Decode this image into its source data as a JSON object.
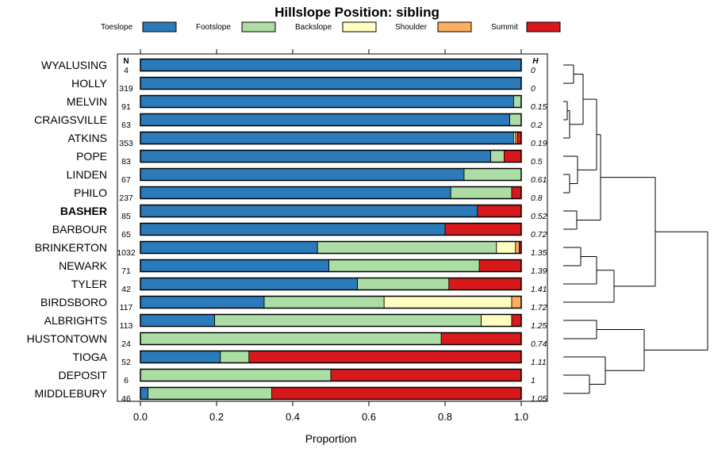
{
  "chart_data": {
    "type": "bar",
    "orientation": "horizontal",
    "stacked": true,
    "title": "Hillslope Position: sibling",
    "xlabel": "Proportion",
    "xlim": [
      0,
      1
    ],
    "xticks": [
      "0.0",
      "0.2",
      "0.4",
      "0.6",
      "0.8",
      "1.0"
    ],
    "n_header": "N",
    "h_header": "H",
    "legend": [
      {
        "name": "Toeslope",
        "color": "#2b7bba"
      },
      {
        "name": "Footslope",
        "color": "#abdda4"
      },
      {
        "name": "Backslope",
        "color": "#ffffbf"
      },
      {
        "name": "Shoulder",
        "color": "#fdae61"
      },
      {
        "name": "Summit",
        "color": "#d7191c"
      }
    ],
    "categories": [
      "WYALUSING",
      "HOLLY",
      "MELVIN",
      "CRAIGSVILLE",
      "ATKINS",
      "POPE",
      "LINDEN",
      "PHILO",
      "BASHER",
      "BARBOUR",
      "BRINKERTON",
      "NEWARK",
      "TYLER",
      "BIRDSBORO",
      "ALBRIGHTS",
      "HUSTONTOWN",
      "TIOGA",
      "DEPOSIT",
      "MIDDLEBURY"
    ],
    "highlight": "BASHER",
    "n": [
      "4",
      "319",
      "91",
      "63",
      "353",
      "83",
      "67",
      "237",
      "85",
      "65",
      "1032",
      "71",
      "42",
      "117",
      "113",
      "24",
      "52",
      "6",
      "46"
    ],
    "h": [
      "0",
      "0",
      "0.15",
      "0.2",
      "0.19",
      "0.5",
      "0.61",
      "0.8",
      "0.52",
      "0.72",
      "1.35",
      "1.39",
      "1.41",
      "1.72",
      "1.25",
      "0.74",
      "1.11",
      "1",
      "1.05"
    ],
    "series": [
      {
        "name": "Toeslope",
        "values": [
          1.0,
          1.0,
          0.98,
          0.97,
          0.98,
          0.92,
          0.85,
          0.815,
          0.885,
          0.8,
          0.465,
          0.495,
          0.57,
          0.325,
          0.195,
          0.0,
          0.21,
          0.0,
          0.02
        ]
      },
      {
        "name": "Footslope",
        "values": [
          0.0,
          0.0,
          0.02,
          0.03,
          0.0,
          0.035,
          0.15,
          0.16,
          0.0,
          0.0,
          0.47,
          0.395,
          0.24,
          0.315,
          0.7,
          0.79,
          0.075,
          0.5,
          0.325
        ]
      },
      {
        "name": "Backslope",
        "values": [
          0.0,
          0.0,
          0.0,
          0.0,
          0.005,
          0.0,
          0.0,
          0.0,
          0.0,
          0.0,
          0.05,
          0.0,
          0.0,
          0.335,
          0.08,
          0.0,
          0.0,
          0.0,
          0.0
        ]
      },
      {
        "name": "Shoulder",
        "values": [
          0.0,
          0.0,
          0.0,
          0.0,
          0.005,
          0.0,
          0.0,
          0.0,
          0.0,
          0.0,
          0.01,
          0.0,
          0.0,
          0.025,
          0.0,
          0.0,
          0.0,
          0.0,
          0.0
        ]
      },
      {
        "name": "Summit",
        "values": [
          0.0,
          0.0,
          0.0,
          0.0,
          0.01,
          0.045,
          0.0,
          0.025,
          0.115,
          0.2,
          0.005,
          0.11,
          0.19,
          0.0,
          0.025,
          0.21,
          0.715,
          0.5,
          0.655
        ]
      }
    ]
  }
}
